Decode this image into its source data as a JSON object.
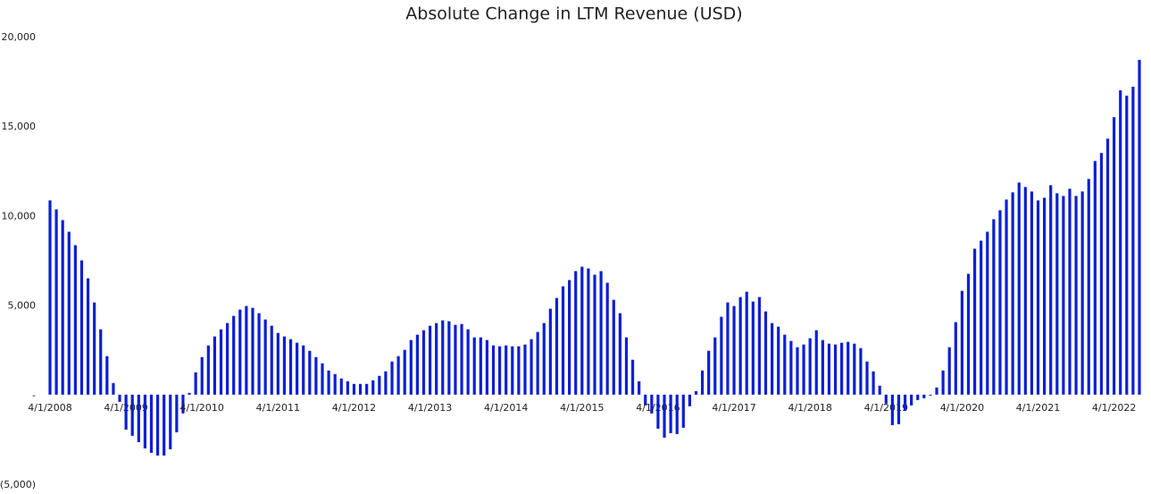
{
  "chart_data": {
    "type": "bar",
    "title": "Absolute Change in LTM Revenue (USD)",
    "categories": [
      "4/1/2008",
      null,
      null,
      null,
      null,
      null,
      null,
      null,
      null,
      null,
      null,
      null,
      "4/1/2009",
      null,
      null,
      null,
      null,
      null,
      null,
      null,
      null,
      null,
      null,
      null,
      "4/1/2010",
      null,
      null,
      null,
      null,
      null,
      null,
      null,
      null,
      null,
      null,
      null,
      "4/1/2011",
      null,
      null,
      null,
      null,
      null,
      null,
      null,
      null,
      null,
      null,
      null,
      "4/1/2012",
      null,
      null,
      null,
      null,
      null,
      null,
      null,
      null,
      null,
      null,
      null,
      "4/1/2013",
      null,
      null,
      null,
      null,
      null,
      null,
      null,
      null,
      null,
      null,
      null,
      "4/1/2014",
      null,
      null,
      null,
      null,
      null,
      null,
      null,
      null,
      null,
      null,
      null,
      "4/1/2015",
      null,
      null,
      null,
      null,
      null,
      null,
      null,
      null,
      null,
      null,
      null,
      "4/1/2016",
      null,
      null,
      null,
      null,
      null,
      null,
      null,
      null,
      null,
      null,
      null,
      "4/1/2017",
      null,
      null,
      null,
      null,
      null,
      null,
      null,
      null,
      null,
      null,
      null,
      "4/1/2018",
      null,
      null,
      null,
      null,
      null,
      null,
      null,
      null,
      null,
      null,
      null,
      "4/1/2019",
      null,
      null,
      null,
      null,
      null,
      null,
      null,
      null,
      null,
      null,
      null,
      "4/1/2020",
      null,
      null,
      null,
      null,
      null,
      null,
      null,
      null,
      null,
      null,
      null,
      "4/1/2021",
      null,
      null,
      null,
      null,
      null,
      null,
      null,
      null,
      null,
      null,
      null,
      "4/1/2022",
      null,
      null,
      null,
      null
    ],
    "values": [
      10850,
      10350,
      9750,
      9100,
      8350,
      7500,
      6500,
      5150,
      3650,
      2150,
      650,
      -400,
      -1950,
      -2300,
      -2650,
      -3000,
      -3250,
      -3400,
      -3400,
      -3050,
      -2100,
      -1050,
      100,
      1250,
      2100,
      2750,
      3250,
      3650,
      4000,
      4400,
      4750,
      4950,
      4850,
      4550,
      4200,
      3850,
      3450,
      3250,
      3100,
      2900,
      2750,
      2450,
      2100,
      1750,
      1350,
      1150,
      900,
      750,
      600,
      600,
      600,
      800,
      1050,
      1300,
      1850,
      2150,
      2500,
      3050,
      3350,
      3600,
      3850,
      4000,
      4150,
      4100,
      3900,
      3950,
      3650,
      3200,
      3200,
      3050,
      2750,
      2700,
      2750,
      2700,
      2700,
      2800,
      3100,
      3500,
      4000,
      4800,
      5400,
      6050,
      6400,
      6900,
      7150,
      7050,
      6700,
      6900,
      6250,
      5300,
      4550,
      3200,
      1950,
      750,
      -600,
      -1050,
      -1900,
      -2400,
      -2150,
      -2200,
      -1850,
      -650,
      200,
      1350,
      2450,
      3200,
      4350,
      5150,
      4950,
      5450,
      5750,
      5200,
      5450,
      4650,
      4000,
      3800,
      3350,
      3000,
      2650,
      2800,
      3150,
      3600,
      3050,
      2850,
      2800,
      2900,
      2950,
      2850,
      2600,
      1850,
      1300,
      500,
      -500,
      -1700,
      -1650,
      -900,
      -600,
      -300,
      -200,
      -50,
      400,
      1350,
      2650,
      4050,
      5800,
      6750,
      8150,
      8600,
      9100,
      9800,
      10300,
      10900,
      11300,
      11850,
      11600,
      11350,
      10850,
      11000,
      11700,
      11250,
      11100,
      11500,
      11100,
      11350,
      12050,
      13050,
      13500,
      14300,
      15500,
      17000,
      16700,
      17200,
      18700
    ],
    "color": "#0b1fd4",
    "ylim": [
      -5000,
      20000
    ],
    "yticks": [
      {
        "value": -5000,
        "label": "(5,000)"
      },
      {
        "value": 0,
        "label": "-"
      },
      {
        "value": 5000,
        "label": "5,000"
      },
      {
        "value": 10000,
        "label": "10,000"
      },
      {
        "value": 15000,
        "label": "15,000"
      },
      {
        "value": 20000,
        "label": "20,000"
      }
    ],
    "grid": false
  }
}
